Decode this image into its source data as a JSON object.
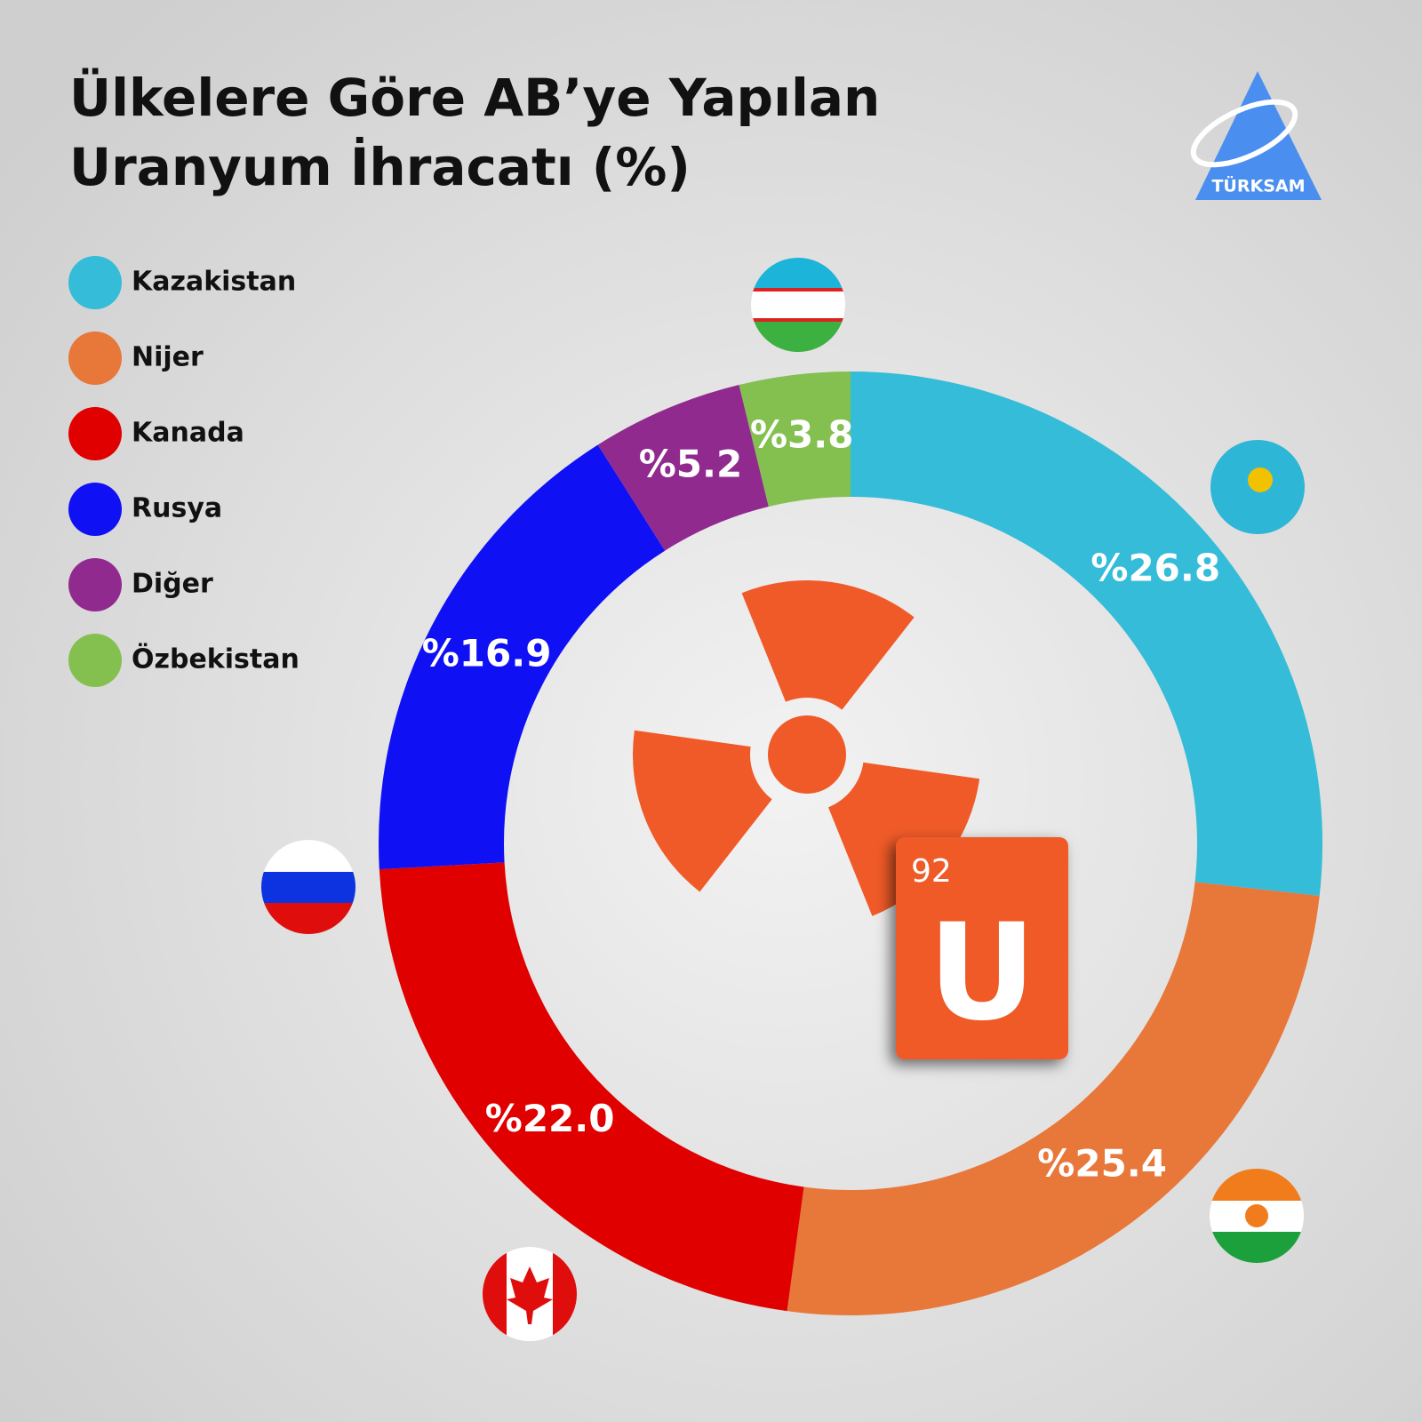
{
  "chart_data": {
    "type": "pie",
    "title": [
      "Ülkelere Göre AB’ye Yapılan",
      "Uranyum İhracatı (%)"
    ],
    "categories": [
      "Kazakistan",
      "Nijer",
      "Kanada",
      "Rusya",
      "Diğer",
      "Özbekistan"
    ],
    "values": [
      26.8,
      25.4,
      22.0,
      16.9,
      5.2,
      3.8
    ],
    "value_labels": [
      "%26.8",
      "%25.4",
      "%22.0",
      "%16.9",
      "%5.2",
      "%3.8"
    ],
    "colors": [
      "#35bcd8",
      "#e8773a",
      "#e00000",
      "#1010f5",
      "#912a8e",
      "#84c04f"
    ],
    "logo": "TÜRKSAM",
    "element": {
      "number": "92",
      "symbol": "U"
    }
  }
}
